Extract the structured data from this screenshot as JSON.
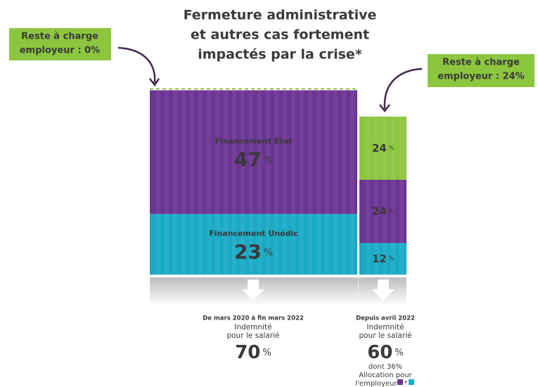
{
  "chart_data": {
    "type": "stacked-bar",
    "title": [
      "Fermeture administrative",
      "et autres cas fortement",
      "impactés par la crise*"
    ],
    "categories": [
      "De mars 2020 à fin mars 2022",
      "Depuis avril 2022"
    ],
    "series": [
      {
        "name": "Financement Unédic",
        "color": "#1aaac6",
        "values": [
          23,
          12
        ]
      },
      {
        "name": "Financement État",
        "color": "#6c3594",
        "values": [
          47,
          24
        ]
      },
      {
        "color": "#8cc63f",
        "values": [
          0,
          24
        ]
      }
    ],
    "unit": "%",
    "callouts": [
      [
        "Reste à charge",
        "employeur : 0%"
      ],
      [
        "Reste à charge",
        "employeur : 24%"
      ]
    ],
    "totals": [
      70,
      60
    ],
    "totals_label": [
      "Indemnité",
      "pour le salarié"
    ],
    "note": [
      "dont 36%",
      "Allocation pour",
      "l'employeur"
    ],
    "note_symbol": "+"
  }
}
